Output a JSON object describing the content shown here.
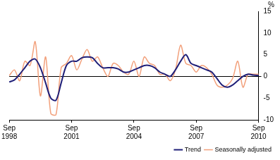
{
  "chart_data": {
    "type": "line",
    "y_label": "%",
    "categories": [
      "Sep 1998",
      null,
      null,
      null,
      null,
      null,
      null,
      null,
      null,
      null,
      null,
      null,
      "Sep 2001",
      null,
      null,
      null,
      null,
      null,
      null,
      null,
      null,
      null,
      null,
      null,
      "Sep 2004",
      null,
      null,
      null,
      null,
      null,
      null,
      null,
      null,
      null,
      null,
      null,
      "Sep 2007",
      null,
      null,
      null,
      null,
      null,
      null,
      null,
      null,
      null,
      null,
      null,
      "Sep 2010"
    ],
    "series": [
      {
        "name": "Trend",
        "color": "#1f1f78",
        "values": [
          -1.3,
          -0.8,
          0.5,
          2,
          3.5,
          4,
          2,
          -1.5,
          -5,
          -5.5,
          -1.5,
          2.5,
          3.5,
          3.5,
          4.3,
          4.5,
          4.3,
          3,
          2,
          2,
          2,
          1.7,
          1,
          1,
          1.5,
          2,
          2.5,
          2.5,
          2,
          1,
          0.5,
          0,
          1.5,
          3.5,
          5,
          3,
          2.5,
          2,
          1.5,
          1,
          -0.5,
          -2,
          -2.5,
          -2,
          -1,
          0,
          0.5,
          0.3,
          0.2
        ]
      },
      {
        "name": "Seasonally adjusted",
        "color": "#f2a07b",
        "values": [
          0.2,
          1.5,
          -1,
          3.5,
          2.5,
          8,
          -4.5,
          4.5,
          -8.5,
          -8.8,
          2,
          3,
          4.8,
          1.5,
          4,
          6.2,
          3.5,
          4.5,
          2,
          0,
          3,
          2.5,
          1,
          0.5,
          3.5,
          0,
          4.5,
          3,
          2.5,
          0.5,
          0.5,
          -1,
          1.5,
          7.2,
          3,
          2.5,
          1,
          2.5,
          2,
          0.5,
          -2,
          -2.5,
          -2,
          -0.5,
          3.5,
          -2.5,
          0.5,
          0.5,
          0.5
        ]
      }
    ],
    "ylim": [
      -10,
      15
    ],
    "yticks": [
      -10,
      -5,
      0,
      5,
      10,
      15
    ],
    "grid": false,
    "legend": "bottom-right"
  }
}
